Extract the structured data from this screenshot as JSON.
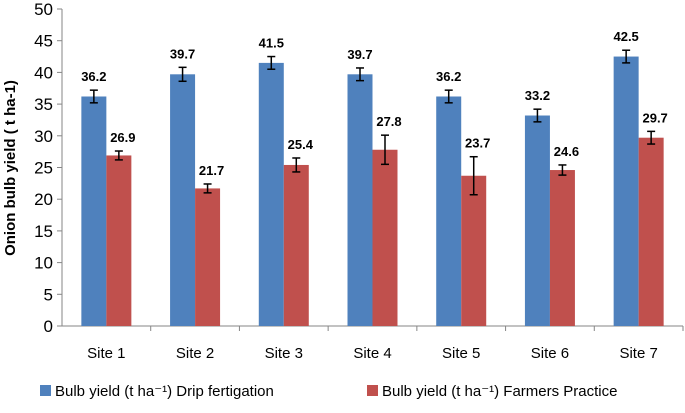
{
  "chart_data": {
    "type": "bar",
    "title": "",
    "xlabel": "",
    "ylabel": "Onion bulb yield ( t ha-1)",
    "ylim": [
      0,
      50
    ],
    "yticks": [
      0,
      5,
      10,
      15,
      20,
      25,
      30,
      35,
      40,
      45,
      50
    ],
    "grid": false,
    "legend_placement": "bottom",
    "categories": [
      "Site 1",
      "Site 2",
      "Site 3",
      "Site 4",
      "Site 5",
      "Site 6",
      "Site 7"
    ],
    "series": [
      {
        "name": "Bulb yield (t ha⁻¹) Drip fertigation",
        "color": "#4F81BD",
        "values": [
          36.2,
          39.7,
          41.5,
          39.7,
          36.2,
          33.2,
          42.5
        ],
        "errors": [
          1.0,
          1.1,
          1.0,
          1.0,
          1.0,
          1.0,
          1.0
        ]
      },
      {
        "name": "Bulb yield (t ha⁻¹) Farmers Practice",
        "color": "#C0504D",
        "values": [
          26.9,
          21.7,
          25.4,
          27.8,
          23.7,
          24.6,
          29.7
        ],
        "errors": [
          0.7,
          0.7,
          1.1,
          2.3,
          3.0,
          0.8,
          1.0
        ]
      }
    ]
  }
}
